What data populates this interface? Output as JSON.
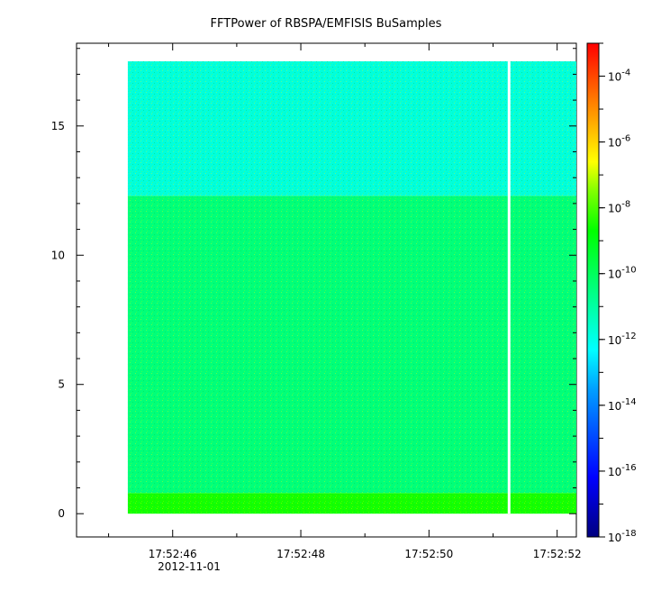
{
  "chart_data": {
    "type": "heatmap",
    "title": "FFTPower of RBSPA/EMFISIS  BuSamples",
    "xlabel": "",
    "ylabel": "",
    "x_tick_labels": [
      "17:52:46",
      "17:52:48",
      "17:52:50",
      "17:52:52"
    ],
    "x_date_label": "2012-11-01",
    "x_range": [
      "17:52:44.5",
      "17:52:52.3"
    ],
    "data_x_range": [
      "17:52:45.3",
      "17:52:52.3"
    ],
    "gap_at": "17:52:51.25",
    "y_ticks": [
      0,
      5,
      10,
      15
    ],
    "ylim": [
      -0.9,
      18.2
    ],
    "data_y_range": [
      0,
      17.5
    ],
    "colorbar": {
      "scale": "log",
      "range": [
        1e-18,
        0.001
      ],
      "tick_exponents": [
        -4,
        -6,
        -8,
        -10,
        -12,
        -14,
        -16,
        -18
      ],
      "base": "10"
    },
    "bands": [
      {
        "y_range": [
          0,
          0.8
        ],
        "level_exp": -8.5
      },
      {
        "y_range": [
          0.8,
          12.3
        ],
        "level_exp": -10.4
      },
      {
        "y_range": [
          12.3,
          17.5
        ],
        "level_exp": -11.8
      }
    ],
    "grid": false,
    "legend": "none"
  }
}
